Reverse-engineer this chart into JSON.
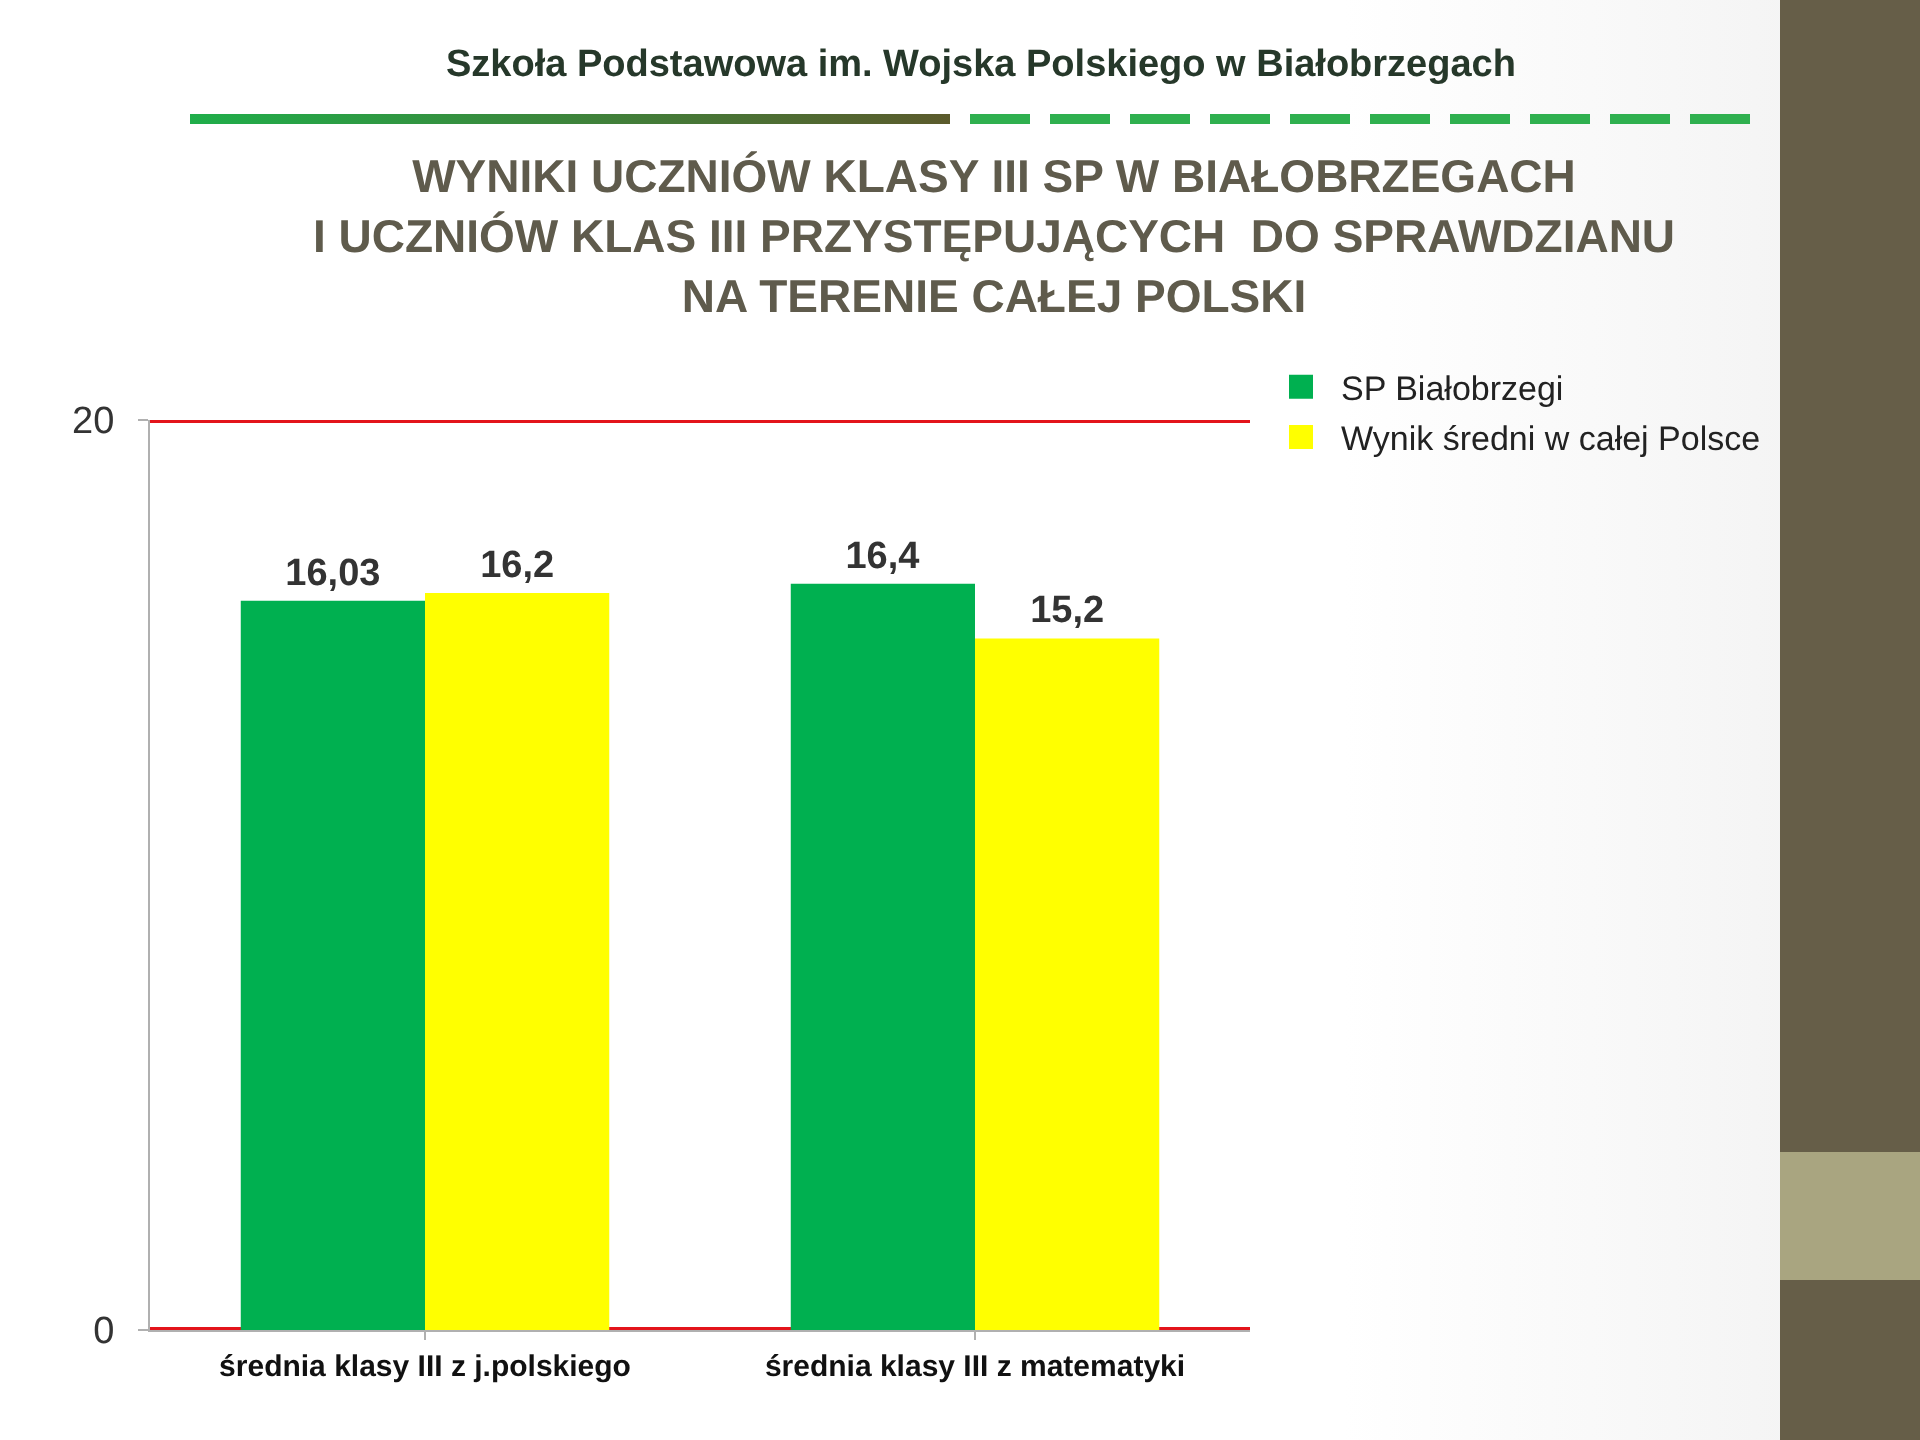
{
  "chart_data": {
    "type": "bar",
    "title": "WYNIKI UCZNIÓW KLASY III SP W BIAŁOBRZEGACH\nI UCZNIÓW KLAS III PRZYSTĘPUJĄCYCH  DO SPRAWDZIANU\nNA TERENIE CAŁEJ POLSKI",
    "annotations": [
      "Szkoła Podstawowa im. Wojska Polskiego w Białobrzegach"
    ],
    "categories": [
      "średnia klasy III z j.polskiego",
      "średnia klasy III z matematyki"
    ],
    "series": [
      {
        "name": "SP Białobrzegi",
        "color": "#00b050",
        "values": [
          16.03,
          16.4
        ],
        "value_labels": [
          "16,03",
          "16,4"
        ]
      },
      {
        "name": "Wynik średni w całej Polsce",
        "color": "#ffff00",
        "values": [
          16.2,
          15.2
        ],
        "value_labels": [
          "16,2",
          "15,2"
        ]
      }
    ],
    "ylim": [
      0,
      20
    ],
    "yticks": [
      0,
      20
    ],
    "grid": "y",
    "legend": "top right"
  }
}
